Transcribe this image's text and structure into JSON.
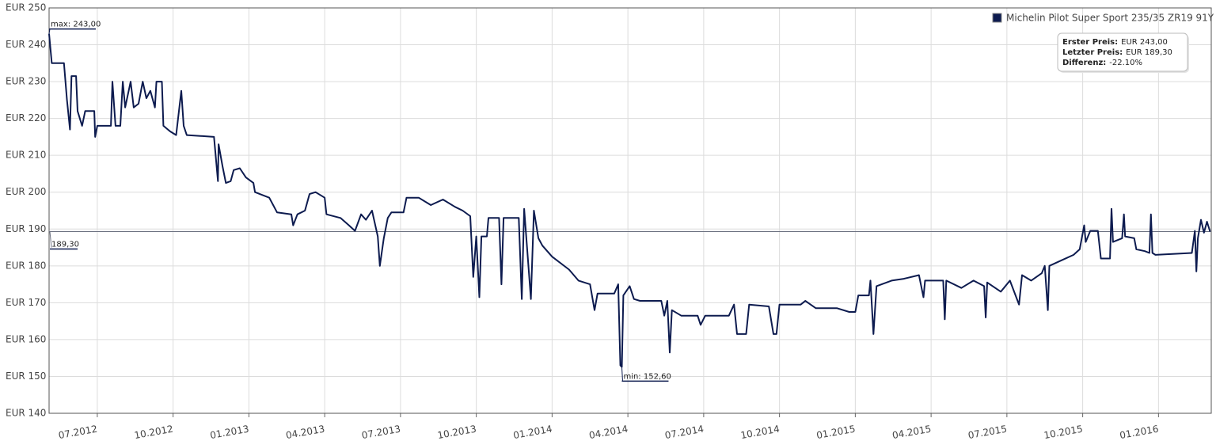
{
  "chart_data": {
    "type": "line",
    "xlim": [
      2012.341,
      2016.174
    ],
    "ylim": [
      140,
      250
    ],
    "xticks": [
      {
        "value": 2012.5,
        "label": "07.2012"
      },
      {
        "value": 2012.75,
        "label": "10.2012"
      },
      {
        "value": 2013.0,
        "label": "01.2013"
      },
      {
        "value": 2013.25,
        "label": "04.2013"
      },
      {
        "value": 2013.5,
        "label": "07.2013"
      },
      {
        "value": 2013.75,
        "label": "10.2013"
      },
      {
        "value": 2014.0,
        "label": "01.2014"
      },
      {
        "value": 2014.25,
        "label": "04.2014"
      },
      {
        "value": 2014.5,
        "label": "07.2014"
      },
      {
        "value": 2014.75,
        "label": "10.2014"
      },
      {
        "value": 2015.0,
        "label": "01.2015"
      },
      {
        "value": 2015.25,
        "label": "04.2015"
      },
      {
        "value": 2015.5,
        "label": "07.2015"
      },
      {
        "value": 2015.75,
        "label": "10.2015"
      },
      {
        "value": 2016.0,
        "label": "01.2016"
      }
    ],
    "yticks": [
      {
        "value": 140,
        "label": "EUR 140"
      },
      {
        "value": 150,
        "label": "EUR 150"
      },
      {
        "value": 160,
        "label": "EUR 160"
      },
      {
        "value": 170,
        "label": "EUR 170"
      },
      {
        "value": 180,
        "label": "EUR 180"
      },
      {
        "value": 190,
        "label": "EUR 190"
      },
      {
        "value": 200,
        "label": "EUR 200"
      },
      {
        "value": 210,
        "label": "EUR 210"
      },
      {
        "value": 220,
        "label": "EUR 220"
      },
      {
        "value": 230,
        "label": "EUR 230"
      },
      {
        "value": 240,
        "label": "EUR 240"
      },
      {
        "value": 250,
        "label": "EUR 250"
      }
    ],
    "grid": true,
    "x": [
      2012.341,
      2012.35,
      2012.39,
      2012.4,
      2012.41,
      2012.415,
      2012.43,
      2012.435,
      2012.45,
      2012.46,
      2012.49,
      2012.493,
      2012.5,
      2012.545,
      2012.55,
      2012.56,
      2012.576,
      2012.584,
      2012.592,
      2012.61,
      2012.62,
      2012.636,
      2012.65,
      2012.662,
      2012.675,
      2012.69,
      2012.695,
      2012.713,
      2012.718,
      2012.74,
      2012.76,
      2012.777,
      2012.785,
      2012.795,
      2012.885,
      2012.898,
      2012.9,
      2012.913,
      2012.924,
      2012.94,
      2012.95,
      2012.97,
      2012.99,
      2013.015,
      2013.02,
      2013.067,
      2013.093,
      2013.14,
      2013.146,
      2013.16,
      2013.185,
      2013.2,
      2013.22,
      2013.25,
      2013.256,
      2013.302,
      2013.33,
      2013.35,
      2013.37,
      2013.386,
      2013.406,
      2013.425,
      2013.432,
      2013.445,
      2013.458,
      2013.47,
      2013.51,
      2013.52,
      2013.56,
      2013.6,
      2013.64,
      2013.68,
      2013.705,
      2013.73,
      2013.74,
      2013.75,
      2013.76,
      2013.767,
      2013.785,
      2013.79,
      2013.825,
      2013.833,
      2013.84,
      2013.89,
      2013.9,
      2013.908,
      2013.93,
      2013.94,
      2013.955,
      2013.968,
      2014.0,
      2014.056,
      2014.087,
      2014.125,
      2014.14,
      2014.15,
      2014.205,
      2014.218,
      2014.225,
      2014.23,
      2014.235,
      2014.256,
      2014.27,
      2014.29,
      2014.36,
      2014.37,
      2014.38,
      2014.388,
      2014.395,
      2014.426,
      2014.48,
      2014.49,
      2014.505,
      2014.583,
      2014.6,
      2014.61,
      2014.64,
      2014.65,
      2014.715,
      2014.73,
      2014.74,
      2014.75,
      2014.82,
      2014.835,
      2014.87,
      2014.94,
      2014.98,
      2015.0,
      2015.01,
      2015.045,
      2015.05,
      2015.06,
      2015.07,
      2015.12,
      2015.16,
      2015.21,
      2015.225,
      2015.23,
      2015.29,
      2015.295,
      2015.3,
      2015.35,
      2015.39,
      2015.425,
      2015.43,
      2015.435,
      2015.48,
      2015.51,
      2015.54,
      2015.55,
      2015.58,
      2015.615,
      2015.625,
      2015.635,
      2015.64,
      2015.68,
      2015.72,
      2015.74,
      2015.755,
      2015.76,
      2015.775,
      2015.8,
      2015.81,
      2015.84,
      2015.845,
      2015.85,
      2015.88,
      2015.886,
      2015.89,
      2015.92,
      2015.927,
      2015.955,
      2015.97,
      2015.975,
      2015.98,
      2015.99,
      2016.11,
      2016.12,
      2016.125,
      2016.13,
      2016.14,
      2016.15,
      2016.16,
      2016.17
    ],
    "series": [
      {
        "name": "Michelin Pilot Super Sport 235/35 ZR19 91Y",
        "color": "#0d1b4f",
        "values": [
          243,
          235,
          235,
          225,
          217,
          231.5,
          231.5,
          222,
          218,
          222,
          222,
          215,
          218,
          218,
          230,
          218,
          218,
          230,
          223,
          230,
          223,
          224,
          230,
          225.5,
          227.5,
          223,
          230,
          230,
          218,
          216.5,
          215.5,
          227.5,
          218,
          215.5,
          215,
          203,
          213,
          207,
          202.5,
          203,
          206,
          206.5,
          204,
          202.5,
          200,
          198.5,
          194.5,
          194,
          191,
          194,
          195,
          199.5,
          200,
          198.5,
          194,
          193,
          191,
          189.5,
          194,
          192.5,
          195,
          188,
          180,
          187.5,
          193,
          194.5,
          194.5,
          198.5,
          198.5,
          196.5,
          198,
          196,
          195,
          193.5,
          177,
          188,
          171.5,
          188,
          188,
          193,
          193,
          175,
          193,
          193,
          171,
          195.5,
          171,
          195,
          187.5,
          185.5,
          182.5,
          179,
          176,
          175,
          168,
          172.5,
          172.5,
          175,
          153,
          152.6,
          172,
          174.5,
          171,
          170.5,
          170.5,
          166.5,
          170.5,
          156.5,
          168,
          166.5,
          166.5,
          164,
          166.5,
          166.5,
          169.5,
          161.5,
          161.5,
          169.5,
          169,
          161.5,
          161.5,
          169.5,
          169.5,
          170.5,
          168.5,
          168.5,
          167.5,
          167.5,
          172,
          172,
          176,
          161.5,
          174.5,
          176,
          176.5,
          177.5,
          171.5,
          176,
          176,
          165.5,
          176,
          174,
          176,
          174.5,
          166,
          175.5,
          173,
          176,
          169.5,
          177.5,
          176,
          178,
          180,
          168,
          180,
          181.5,
          183,
          184.5,
          191,
          186.5,
          189.5,
          189.5,
          182,
          182,
          195.5,
          186.5,
          187.5,
          194,
          188,
          187.5,
          184.5,
          184,
          183.5,
          194,
          183.5,
          183,
          183.5,
          189.5,
          178.5,
          187.5,
          192.5,
          189,
          192,
          189.3
        ]
      }
    ],
    "annotations": [
      {
        "text": "max: 243,00",
        "x": 2012.341,
        "y": 243
      },
      {
        "text": "min: 152,60",
        "x": 2014.23,
        "y": 152.6
      }
    ],
    "reference_line": {
      "value": 189.3,
      "label": "189,30"
    },
    "legend": "top-right",
    "info": [
      {
        "label": "Erster Preis:",
        "value": "EUR 243,00"
      },
      {
        "label": "Letzter Preis:",
        "value": "EUR 189,30"
      },
      {
        "label": "Differenz:",
        "value": "-22.10%"
      }
    ]
  }
}
